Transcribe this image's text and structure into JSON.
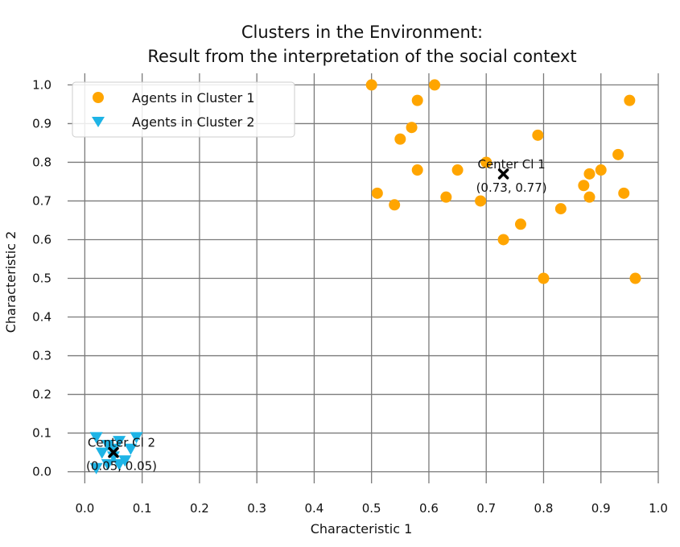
{
  "chart_data": {
    "type": "scatter",
    "title": "Clusters in the Environment:",
    "subtitle": "Result from the interpretation of the social context",
    "xlabel": "Characteristic 1",
    "ylabel": "Characteristic 2",
    "xlim": [
      -0.03,
      1.0
    ],
    "ylim": [
      -0.03,
      1.03
    ],
    "xticks": [
      "0.0",
      "0.1",
      "0.2",
      "0.3",
      "0.4",
      "0.5",
      "0.6",
      "0.7",
      "0.8",
      "0.9",
      "1.0"
    ],
    "yticks": [
      "0.0",
      "0.1",
      "0.2",
      "0.3",
      "0.4",
      "0.5",
      "0.6",
      "0.7",
      "0.8",
      "0.9",
      "1.0"
    ],
    "grid": true,
    "legend_position": "top-left",
    "series": [
      {
        "name": "Agents in Cluster 1",
        "marker": "circle",
        "color": "#FFA500",
        "points": [
          [
            0.5,
            1.0
          ],
          [
            0.61,
            1.0
          ],
          [
            0.58,
            0.96
          ],
          [
            0.95,
            0.96
          ],
          [
            0.57,
            0.89
          ],
          [
            0.55,
            0.86
          ],
          [
            0.79,
            0.87
          ],
          [
            0.93,
            0.82
          ],
          [
            0.7,
            0.8
          ],
          [
            0.58,
            0.78
          ],
          [
            0.65,
            0.78
          ],
          [
            0.88,
            0.77
          ],
          [
            0.9,
            0.78
          ],
          [
            0.87,
            0.74
          ],
          [
            0.51,
            0.72
          ],
          [
            0.63,
            0.71
          ],
          [
            0.69,
            0.7
          ],
          [
            0.88,
            0.71
          ],
          [
            0.94,
            0.72
          ],
          [
            0.54,
            0.69
          ],
          [
            0.83,
            0.68
          ],
          [
            0.76,
            0.64
          ],
          [
            0.73,
            0.6
          ],
          [
            0.8,
            0.5
          ],
          [
            0.96,
            0.5
          ]
        ]
      },
      {
        "name": "Agents in Cluster 2",
        "marker": "triangle-down",
        "color": "#1EB4E6",
        "points": [
          [
            0.02,
            0.09
          ],
          [
            0.09,
            0.09
          ],
          [
            0.04,
            0.07
          ],
          [
            0.06,
            0.08
          ],
          [
            0.03,
            0.05
          ],
          [
            0.05,
            0.04
          ],
          [
            0.07,
            0.03
          ],
          [
            0.04,
            0.02
          ],
          [
            0.08,
            0.06
          ],
          [
            0.02,
            0.01
          ],
          [
            0.06,
            0.02
          ],
          [
            0.05,
            0.06
          ]
        ]
      }
    ],
    "centers": [
      {
        "label": "Center Cl 1",
        "coord_text": "(0.73, 0.77)",
        "x": 0.73,
        "y": 0.77,
        "color": "#000000"
      },
      {
        "label": "Center Cl 2",
        "coord_text": "(0.05, 0.05)",
        "x": 0.05,
        "y": 0.05,
        "color": "#000000"
      }
    ]
  }
}
